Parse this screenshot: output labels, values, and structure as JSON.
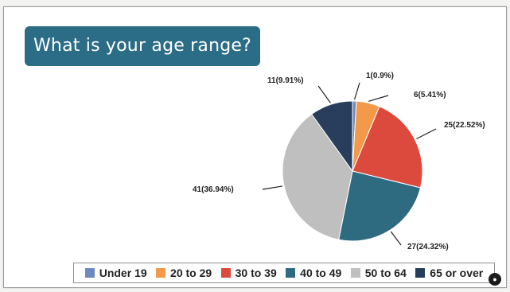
{
  "title": "What is your age range?",
  "colors": {
    "title_bg": "#2b6c86",
    "leader": "#222222"
  },
  "chart_data": {
    "type": "pie",
    "start_angle_deg": 0,
    "direction": "clockwise",
    "legend_position": "bottom",
    "slices": [
      {
        "label": "Under 19",
        "value": 1,
        "percent": 0.9,
        "data_label": "1(0.9%)",
        "color": "#6d8ac0"
      },
      {
        "label": "20 to 29",
        "value": 6,
        "percent": 5.41,
        "data_label": "6(5.41%)",
        "color": "#f29a4a"
      },
      {
        "label": "30 to 39",
        "value": 25,
        "percent": 22.52,
        "data_label": "25(22.52%)",
        "color": "#dc4a3d"
      },
      {
        "label": "40 to 49",
        "value": 27,
        "percent": 24.32,
        "data_label": "27(24.32%)",
        "color": "#2e6a80"
      },
      {
        "label": "50 to 64",
        "value": 41,
        "percent": 36.94,
        "data_label": "41(36.94%)",
        "color": "#bfbfbf"
      },
      {
        "label": "65 or over",
        "value": 11,
        "percent": 9.91,
        "data_label": "11(9.91%)",
        "color": "#283e5c"
      }
    ]
  }
}
